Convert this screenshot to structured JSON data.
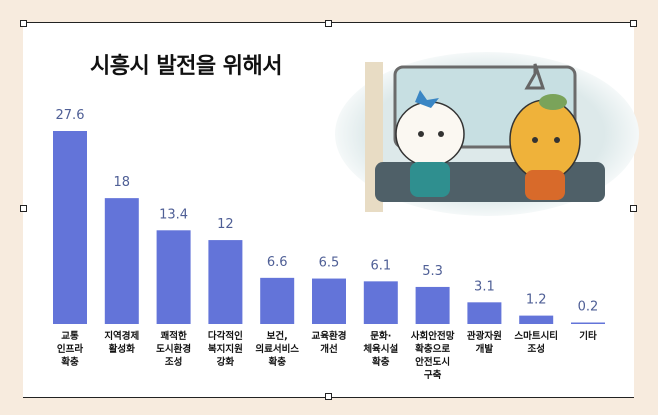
{
  "chart_data": {
    "type": "bar",
    "title": "시흥시 발전을 위해서",
    "categories": [
      [
        "교통",
        "인프라",
        "확충"
      ],
      [
        "지역경제",
        "활성화"
      ],
      [
        "쾌적한",
        "도시환경",
        "조성"
      ],
      [
        "다각적인",
        "복지지원",
        "강화"
      ],
      [
        "보건,",
        "의료서비스",
        "확충"
      ],
      [
        "교육환경",
        "개선"
      ],
      [
        "문화·",
        "체육시설",
        "확충"
      ],
      [
        "사회안전망",
        "확충으로",
        "안전도시",
        "구축"
      ],
      [
        "관광자원",
        "개발"
      ],
      [
        "스마트시티",
        "조성"
      ],
      [
        "기타"
      ]
    ],
    "values": [
      27.6,
      18,
      13.4,
      12,
      6.6,
      6.5,
      6.1,
      5.3,
      3.1,
      1.2,
      0.2
    ],
    "value_labels": [
      "27.6",
      "18",
      "13.4",
      "12",
      "6.6",
      "6.5",
      "6.1",
      "5.3",
      "3.1",
      "1.2",
      "0.2"
    ],
    "ylim": [
      0,
      27.6
    ],
    "grid": false,
    "colors": {
      "bar": "#6374d9",
      "value_label": "#4f5f96"
    }
  }
}
